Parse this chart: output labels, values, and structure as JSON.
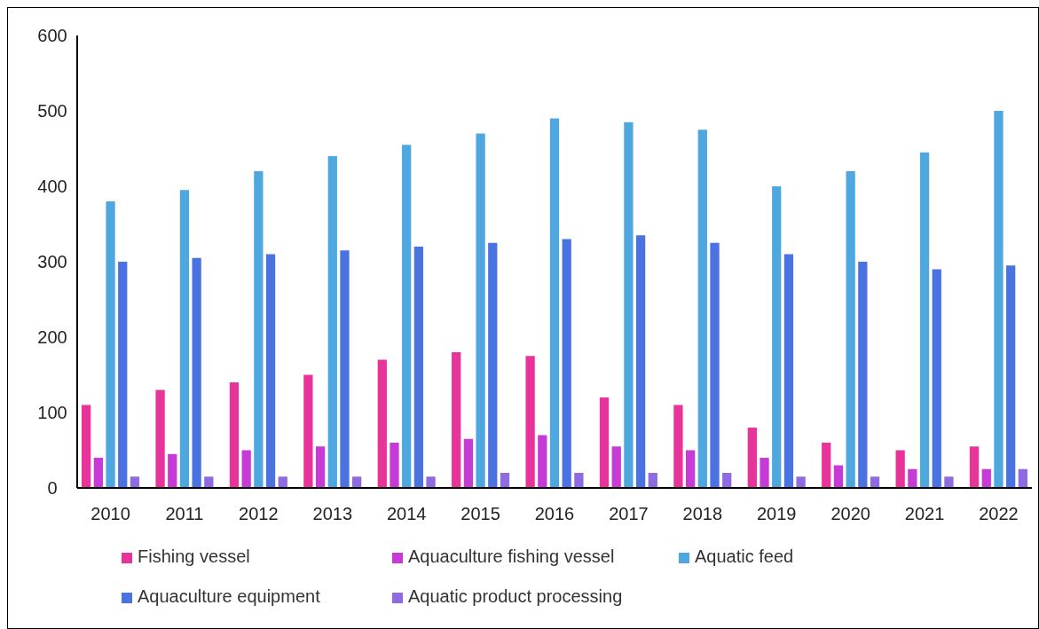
{
  "chart_data": {
    "type": "bar",
    "categories": [
      "2010",
      "2011",
      "2012",
      "2013",
      "2014",
      "2015",
      "2016",
      "2017",
      "2018",
      "2019",
      "2020",
      "2021",
      "2022"
    ],
    "series": [
      {
        "name": "Fishing vessel",
        "color": "#e8339a",
        "values": [
          110,
          130,
          140,
          150,
          170,
          180,
          175,
          120,
          110,
          80,
          60,
          50,
          55
        ]
      },
      {
        "name": "Aquaculture fishing vessel",
        "color": "#c63ad6",
        "values": [
          40,
          45,
          50,
          55,
          60,
          65,
          70,
          55,
          50,
          40,
          30,
          25,
          25
        ]
      },
      {
        "name": "Aquatic feed",
        "color": "#4ea8df",
        "values": [
          380,
          395,
          420,
          440,
          455,
          470,
          490,
          485,
          475,
          400,
          420,
          445,
          500
        ]
      },
      {
        "name": "Aquaculture equipment",
        "color": "#4a72e0",
        "values": [
          300,
          305,
          310,
          315,
          320,
          325,
          330,
          335,
          325,
          310,
          300,
          290,
          295
        ]
      },
      {
        "name": "Aquatic product processing",
        "color": "#8e6be0",
        "values": [
          15,
          15,
          15,
          15,
          15,
          20,
          20,
          20,
          20,
          15,
          15,
          15,
          25
        ]
      }
    ],
    "ylim": [
      0,
      600
    ],
    "yticks": [
      0,
      100,
      200,
      300,
      400,
      500,
      600
    ],
    "grid": false,
    "legend": "bottom"
  }
}
